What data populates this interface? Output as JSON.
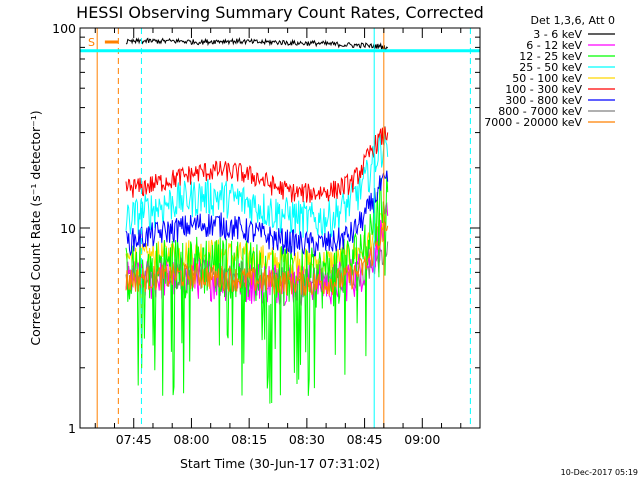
{
  "chart_data": {
    "type": "line",
    "title": "HESSI Observing Summary Count Rates, Corrected",
    "xlabel": "Start Time (30-Jun-17 07:31:02)",
    "ylabel": "Corrected Count Rate (s⁻¹ detector⁻¹)",
    "yscale": "log",
    "ylim": [
      1,
      100
    ],
    "xlim": [
      "07:31:02",
      "09:15:00"
    ],
    "x_ticks": [
      "07:45",
      "08:00",
      "08:15",
      "08:30",
      "08:45",
      "09:00"
    ],
    "y_ticks": [
      "1",
      "10",
      "100"
    ],
    "grid": false,
    "legend_position": "top-right, outside plot",
    "legend_header": "Det 1,3,6, Att 0",
    "s_marker_label": "S",
    "footer_timestamp": "10-Dec-2017 05:19",
    "x": [
      "07:43",
      "07:47",
      "07:52",
      "07:57",
      "08:02",
      "08:07",
      "08:12",
      "08:17",
      "08:22",
      "08:27",
      "08:32",
      "08:37",
      "08:42",
      "08:45",
      "08:47",
      "08:49",
      "08:51"
    ],
    "series": [
      {
        "name": "3 - 6 keV",
        "color": "#000000",
        "values": [
          85,
          86,
          86,
          86,
          85,
          86,
          86,
          85,
          85,
          84,
          84,
          83,
          82,
          82,
          81,
          81,
          80
        ]
      },
      {
        "name": "6 - 12 keV",
        "color": "#ff00ff",
        "values": [
          5.5,
          5.6,
          5.7,
          5.8,
          5.8,
          5.7,
          5.6,
          5.5,
          5.5,
          5.4,
          5.3,
          5.4,
          5.8,
          6.5,
          7.5,
          9,
          11
        ]
      },
      {
        "name": "12 - 25 keV",
        "color": "#00ff00",
        "values": [
          6.2,
          6.3,
          6.6,
          6.8,
          6.9,
          6.8,
          6.6,
          6.4,
          6.1,
          6.0,
          5.9,
          6.1,
          7.0,
          8.5,
          10.5,
          13,
          16
        ]
      },
      {
        "name": "25 - 50 keV",
        "color": "#00ffff",
        "values": [
          11,
          12,
          13,
          14,
          14.5,
          14.5,
          14,
          13,
          12,
          11.5,
          11,
          11.5,
          14,
          17,
          21,
          25,
          28
        ]
      },
      {
        "name": "50 - 100 keV",
        "color": "#ffd700",
        "values": [
          7.0,
          7.1,
          7.3,
          7.5,
          7.6,
          7.5,
          7.3,
          7.1,
          6.9,
          6.8,
          6.7,
          6.8,
          7.3,
          8.0,
          9.0,
          10,
          11
        ]
      },
      {
        "name": "100 - 300 keV",
        "color": "#ff0000",
        "values": [
          16,
          16,
          17,
          18,
          19,
          19.5,
          19,
          18,
          16,
          15,
          15,
          15.5,
          17,
          21,
          25,
          28,
          30
        ]
      },
      {
        "name": "300 - 800 keV",
        "color": "#0000ff",
        "values": [
          8.5,
          9.0,
          9.5,
          10.0,
          10.5,
          10.5,
          10.0,
          9.5,
          8.8,
          8.5,
          8.3,
          8.5,
          9.5,
          11.5,
          13.5,
          16,
          17
        ]
      },
      {
        "name": "800 - 7000 keV",
        "color": "#808080",
        "values": [
          5.6,
          5.7,
          5.8,
          5.8,
          5.8,
          5.7,
          5.6,
          5.6,
          5.6,
          5.5,
          5.5,
          5.5,
          5.7,
          6.0,
          6.5,
          7.0,
          7.5
        ]
      },
      {
        "name": "7000 - 20000 keV",
        "color": "#ff8000",
        "values": [
          5.5,
          5.6,
          5.7,
          5.8,
          5.8,
          5.7,
          5.6,
          5.5,
          5.4,
          5.4,
          5.3,
          5.4,
          5.8,
          6.5,
          7.5,
          9,
          10
        ]
      }
    ],
    "markers": {
      "solid_cyan": [
        "07:31:02",
        "08:47:30"
      ],
      "dashed_cyan": [
        "07:47:00",
        "09:12:30"
      ],
      "solid_orange": [
        "07:35:30",
        "08:50:00"
      ],
      "dashed_orange": [
        "07:41:00"
      ],
      "s_bar": [
        "07:37:30",
        "07:41:00"
      ],
      "cyan_hline_value": 77
    }
  }
}
